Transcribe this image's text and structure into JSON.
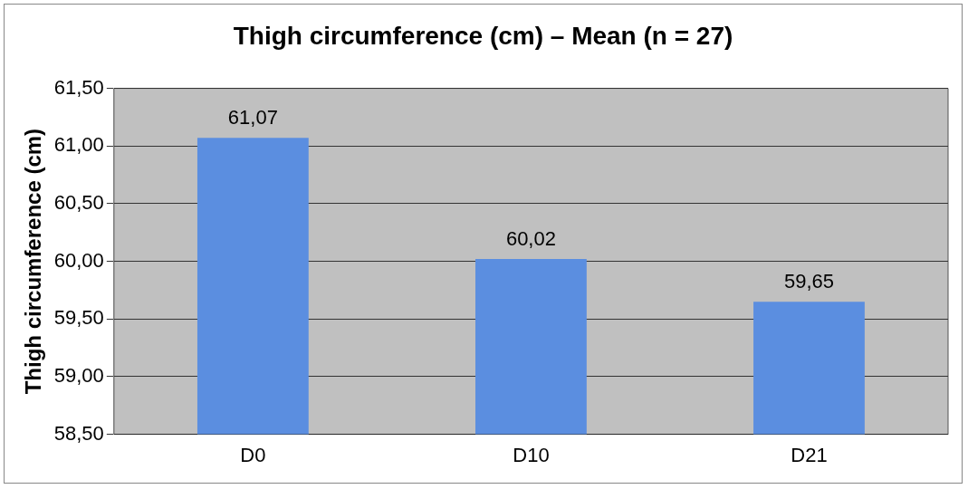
{
  "chart_data": {
    "type": "bar",
    "title": "Thigh circumference (cm) – Mean (n = 27)",
    "ylabel": "Thigh circumference (cm)",
    "categories": [
      "D0",
      "D10",
      "D21"
    ],
    "values": [
      61.07,
      60.02,
      59.65
    ],
    "color": "#5b8ee0",
    "value_labels": [
      "61,07",
      "60,02",
      "59,65"
    ],
    "ylim": [
      58.5,
      61.5
    ],
    "yticks": [
      {
        "value": 58.5,
        "label": "58,50"
      },
      {
        "value": 59,
        "label": "59,00"
      },
      {
        "value": 59.5,
        "label": "59,50"
      },
      {
        "value": 60,
        "label": "60,00"
      },
      {
        "value": 60.5,
        "label": "60,50"
      },
      {
        "value": 61,
        "label": "61,00"
      },
      {
        "value": 61.5,
        "label": "61,50"
      }
    ],
    "grid": "y",
    "legend": false
  }
}
